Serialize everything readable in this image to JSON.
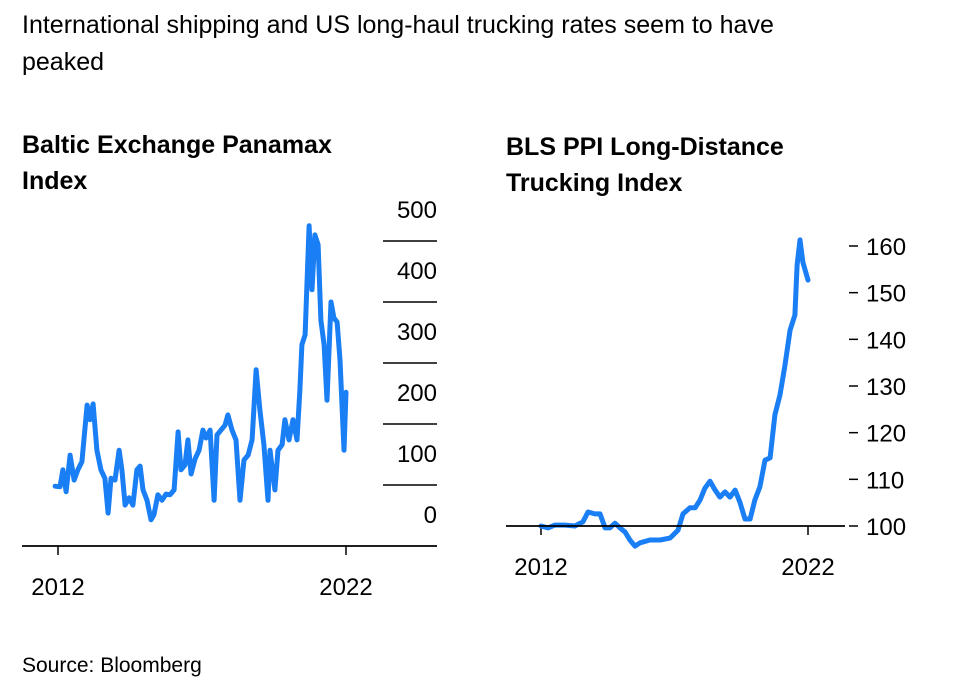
{
  "title_line1": "International shipping and US long-haul trucking rates seem to have",
  "title_line2": "peaked",
  "source": "Source: Bloomberg",
  "colors": {
    "line": "#1a7ef5",
    "axis": "#000000"
  },
  "chart_data": [
    {
      "type": "line",
      "title_line1": "Baltic Exchange Panamax",
      "title_line2": "Index",
      "xlabel": "",
      "ylabel": "",
      "xlim": [
        2012,
        2022
      ],
      "ylim": [
        0,
        500
      ],
      "yticks": [
        "0",
        "100",
        "200",
        "300",
        "400",
        "500"
      ],
      "xticks": [
        "2012",
        "2022"
      ],
      "y_axis_position": "right",
      "series": [
        {
          "name": "Baltic Exchange Panamax Index",
          "x": [
            2011.9,
            2012.07,
            2012.17,
            2012.28,
            2012.42,
            2012.56,
            2012.69,
            2012.83,
            2013.01,
            2013.11,
            2013.22,
            2013.35,
            2013.49,
            2013.63,
            2013.74,
            2013.84,
            2013.98,
            2014.12,
            2014.22,
            2014.33,
            2014.47,
            2014.6,
            2014.74,
            2014.85,
            2014.95,
            2015.09,
            2015.23,
            2015.33,
            2015.47,
            2015.61,
            2015.75,
            2015.89,
            2016.03,
            2016.17,
            2016.27,
            2016.41,
            2016.51,
            2016.62,
            2016.76,
            2016.9,
            2017.03,
            2017.14,
            2017.28,
            2017.42,
            2017.52,
            2017.66,
            2017.8,
            2017.9,
            2018.04,
            2018.18,
            2018.32,
            2018.46,
            2018.6,
            2018.74,
            2018.88,
            2019.01,
            2019.15,
            2019.29,
            2019.36,
            2019.53,
            2019.64,
            2019.78,
            2019.88,
            2020.02,
            2020.16,
            2020.3,
            2020.4,
            2020.47,
            2020.58,
            2020.72,
            2020.82,
            2020.92,
            2021.03,
            2021.13,
            2021.24,
            2021.34,
            2021.48,
            2021.58,
            2021.69,
            2021.79,
            2021.93,
            2022.0
          ],
          "y": [
            98,
            97,
            125,
            89,
            149,
            108,
            125,
            138,
            231,
            207,
            233,
            157,
            125,
            111,
            54,
            111,
            108,
            157,
            125,
            67,
            79,
            67,
            125,
            131,
            92,
            75,
            43,
            51,
            84,
            75,
            85,
            84,
            92,
            187,
            125,
            133,
            174,
            118,
            143,
            157,
            190,
            177,
            190,
            75,
            182,
            190,
            198,
            215,
            190,
            174,
            75,
            141,
            149,
            174,
            289,
            223,
            166,
            75,
            157,
            92,
            157,
            166,
            207,
            174,
            207,
            174,
            256,
            330,
            346,
            525,
            420,
            510,
            494,
            370,
            330,
            239,
            400,
            374,
            367,
            305,
            157,
            252
          ]
        }
      ]
    },
    {
      "type": "line",
      "title_line1": "BLS PPI Long-Distance",
      "title_line2": "Trucking Index",
      "xlabel": "",
      "ylabel": "",
      "xlim": [
        2012,
        2022
      ],
      "ylim": [
        100,
        160
      ],
      "yticks": [
        "100",
        "110",
        "120",
        "130",
        "140",
        "150",
        "160"
      ],
      "xticks": [
        "2012",
        "2022"
      ],
      "y_axis_position": "right",
      "series": [
        {
          "name": "BLS PPI Long-Distance Trucking Index",
          "x": [
            2012.0,
            2012.26,
            2012.52,
            2012.9,
            2013.27,
            2013.57,
            2013.76,
            2014.02,
            2014.21,
            2014.4,
            2014.58,
            2014.77,
            2014.96,
            2015.15,
            2015.33,
            2015.52,
            2015.71,
            2016.08,
            2016.46,
            2016.83,
            2017.13,
            2017.32,
            2017.58,
            2017.77,
            2017.96,
            2018.14,
            2018.33,
            2018.52,
            2018.7,
            2018.89,
            2019.08,
            2019.27,
            2019.45,
            2019.64,
            2019.83,
            2020.01,
            2020.2,
            2020.39,
            2020.58,
            2020.76,
            2020.95,
            2021.14,
            2021.33,
            2021.51,
            2021.59,
            2021.7,
            2021.81,
            2022.0
          ],
          "y": [
            100,
            99.6,
            100.2,
            100.2,
            100,
            100.9,
            103,
            102.6,
            102.6,
            99.6,
            99.6,
            100.6,
            99.6,
            98.7,
            97,
            95.7,
            96.4,
            97,
            97,
            97.4,
            99.1,
            102.6,
            103.9,
            103.9,
            105.6,
            108.1,
            109.6,
            107.7,
            106.2,
            107.3,
            106.2,
            107.7,
            105.1,
            101.5,
            101.5,
            105.6,
            108.4,
            114.1,
            114.6,
            123.8,
            128.1,
            134.5,
            142,
            145.2,
            155.9,
            161.3,
            156.5,
            152.7
          ]
        }
      ]
    }
  ]
}
